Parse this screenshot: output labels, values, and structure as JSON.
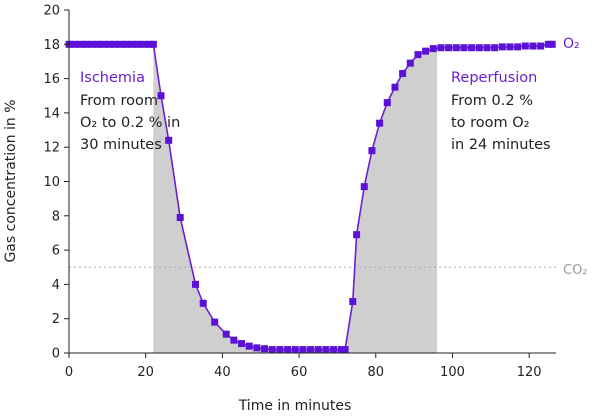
{
  "chart_data": {
    "type": "line",
    "xlabel": "Time in minutes",
    "ylabel": "Gas concentration in %",
    "xlim": [
      0,
      127
    ],
    "ylim": [
      0,
      20
    ],
    "xticks": [
      0,
      20,
      40,
      60,
      80,
      100,
      120
    ],
    "yticks": [
      0,
      2,
      4,
      6,
      8,
      10,
      12,
      14,
      16,
      18,
      20
    ],
    "grid": false,
    "colors": {
      "series": "#6a1fd0",
      "marker": "#5b12d6",
      "fill": "#cfcfcf",
      "reference": "#aaaaaa"
    },
    "series": [
      {
        "name": "O₂",
        "x": [
          0,
          1.5,
          3,
          4.5,
          6,
          7.5,
          9,
          10.5,
          12,
          13.5,
          15,
          16.5,
          18,
          19.5,
          21,
          22,
          24,
          26,
          29,
          33,
          35,
          38,
          41,
          43,
          45,
          47,
          49,
          51,
          53,
          55,
          57,
          59,
          61,
          63,
          65,
          67,
          69,
          71,
          72,
          74,
          75,
          77,
          79,
          81,
          83,
          85,
          87,
          89,
          91,
          93,
          95,
          97,
          99,
          101,
          103,
          105,
          107,
          109,
          111,
          113,
          115,
          117,
          119,
          121,
          123,
          125,
          126
        ],
        "y": [
          18,
          18,
          18,
          18,
          18,
          18,
          18,
          18,
          18,
          18,
          18,
          18,
          18,
          18,
          18,
          18,
          15,
          12.4,
          7.9,
          4.0,
          2.9,
          1.8,
          1.1,
          0.75,
          0.55,
          0.4,
          0.3,
          0.25,
          0.2,
          0.2,
          0.2,
          0.2,
          0.2,
          0.2,
          0.2,
          0.2,
          0.2,
          0.2,
          0.2,
          3.0,
          6.9,
          9.7,
          11.8,
          13.4,
          14.6,
          15.5,
          16.3,
          16.9,
          17.4,
          17.6,
          17.75,
          17.8,
          17.8,
          17.8,
          17.8,
          17.8,
          17.8,
          17.8,
          17.8,
          17.85,
          17.85,
          17.85,
          17.9,
          17.9,
          17.9,
          18,
          18
        ]
      }
    ],
    "reference_lines": [
      {
        "name": "CO₂",
        "y": 5,
        "style": "dotted"
      }
    ],
    "shaded_regions": [
      {
        "x_from": 22,
        "x_to": 96,
        "below": "O₂"
      }
    ],
    "annotations": [
      {
        "title": "Ischemia",
        "lines": [
          "From room",
          "O₂ to 0.2 % in",
          "30 minutes"
        ]
      },
      {
        "title": "Reperfusion",
        "lines": [
          "From 0.2 %",
          "to room O₂",
          "in 24 minutes"
        ]
      }
    ]
  }
}
